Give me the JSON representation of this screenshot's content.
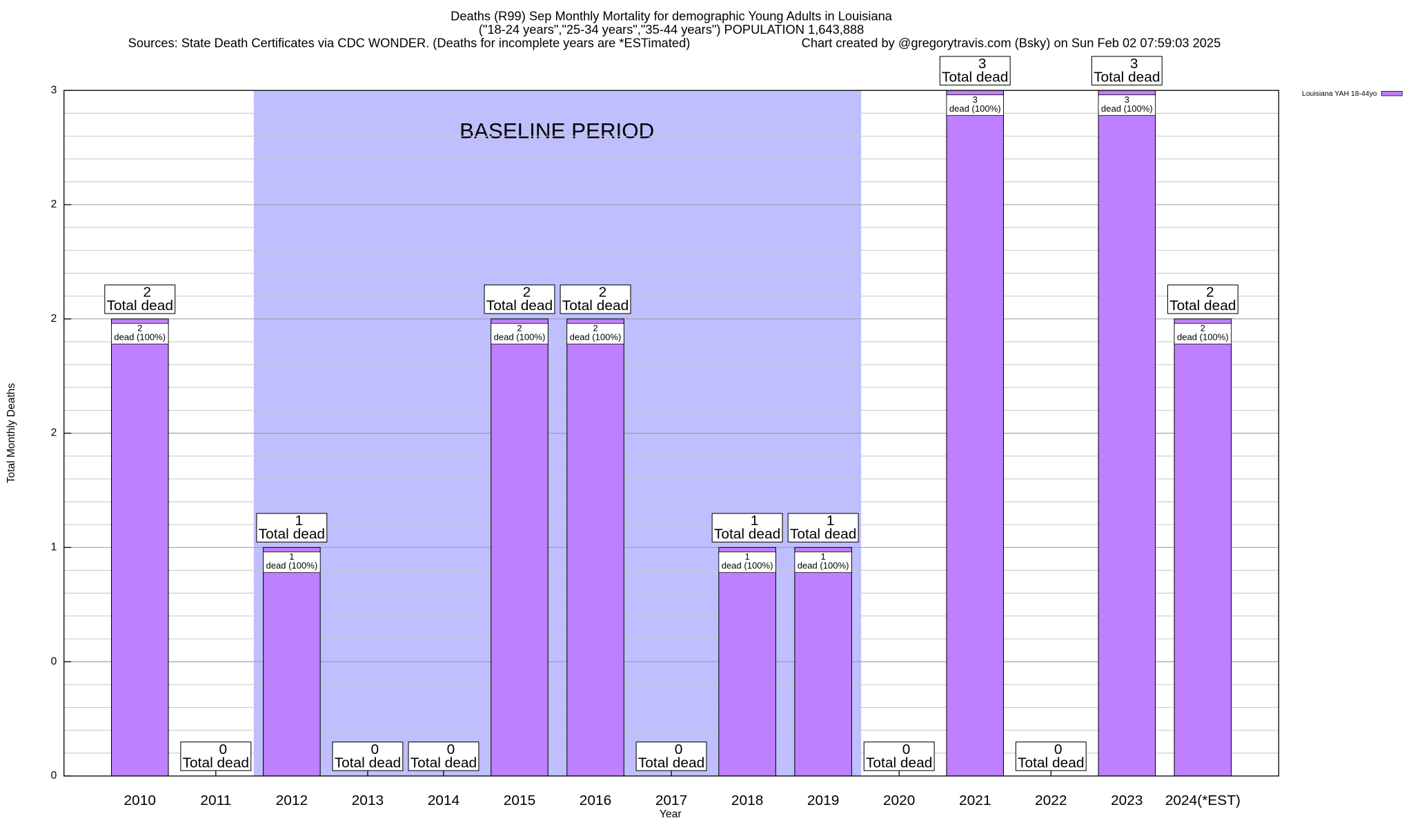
{
  "chart_data": {
    "type": "bar",
    "title": "Deaths (R99) Sep Monthly Mortality for demographic Young Adults in Louisiana",
    "subtitle": "(\"18-24 years\",\"25-34 years\",\"35-44 years\") POPULATION 1,643,888",
    "source": "Sources: State Death Certificates via CDC WONDER. (Deaths for incomplete years are *ESTimated)",
    "credit": "Chart created by @gregorytravis.com (Bsky) on Sun Feb 02 07:59:03 2025",
    "annotation": "BASELINE PERIOD",
    "x_label": "Year",
    "y_label": "Total Monthly Deaths",
    "categories": [
      "2010",
      "2011",
      "2012",
      "2013",
      "2014",
      "2015",
      "2016",
      "2017",
      "2018",
      "2019",
      "2020",
      "2021",
      "2022",
      "2023",
      "2024(*EST)"
    ],
    "series": [
      {
        "name": "Louisiana YAH 18-44yo",
        "color": "#bf80ff",
        "values": [
          2,
          0,
          1,
          0,
          0,
          2,
          2,
          0,
          1,
          1,
          0,
          3,
          0,
          3,
          2
        ]
      }
    ],
    "total_label": "Total dead",
    "inner_label": "dead (100%)",
    "ylim": [
      0,
      3
    ],
    "yticks": [
      0,
      {
        "value": 0.5,
        "label": "0"
      },
      1,
      {
        "value": 1.5,
        "label": "2"
      },
      2,
      {
        "value": 2.5,
        "label": "2"
      },
      3
    ],
    "grid": true,
    "legend": "top-right",
    "shade_color": "#bfbfff"
  }
}
